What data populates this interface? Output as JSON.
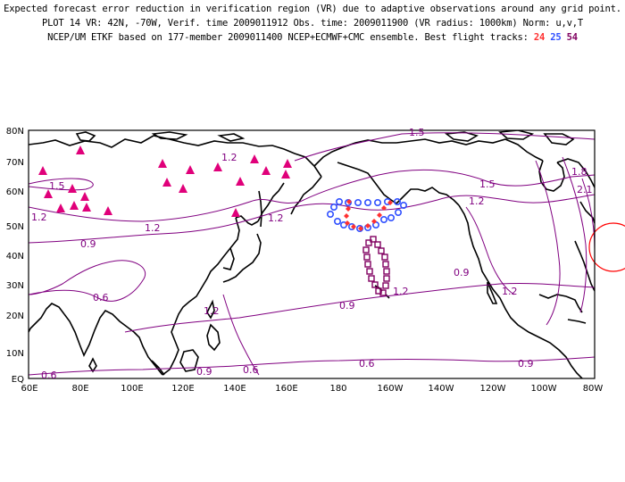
{
  "header": {
    "line1": "Expected forecast error reduction in verification region (VR) due to adaptive observations around any grid point.",
    "line2": "PLOT 14 VR: 42N, -70W, Verif. time 2009011912 Obs. time: 2009011900 (VR radius: 1000km) Norm: u,v,T",
    "line3_prefix": "NCEP/UM ETKF based on 177-member 2009011400 NCEP+ECMWF+CMC ensemble. Best flight tracks:",
    "tracks": [
      {
        "id": "24",
        "color": "#ff3030"
      },
      {
        "id": "25",
        "color": "#3050ff"
      },
      {
        "id": "54",
        "color": "#800060"
      }
    ]
  },
  "map": {
    "lat_ticks": [
      "EQ",
      "10N",
      "20N",
      "30N",
      "40N",
      "50N",
      "60N",
      "70N",
      "80N"
    ],
    "lon_ticks": [
      "60E",
      "80E",
      "100E",
      "120E",
      "140E",
      "160E",
      "180",
      "160W",
      "140W",
      "120W",
      "100W",
      "80W"
    ],
    "contour_color": "#800080",
    "contour_labels": [
      "1.5",
      "1.2",
      "0.9",
      "0.6",
      "1.8",
      "2.1"
    ],
    "verification_region": {
      "lat": 42,
      "lon": -70,
      "color": "#ff0000"
    },
    "observation_sites": {
      "marker": "triangle",
      "color": "#e0007a"
    }
  }
}
